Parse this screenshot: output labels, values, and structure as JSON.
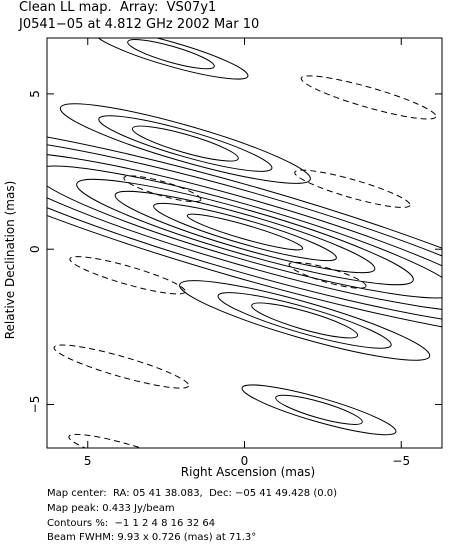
{
  "header": {
    "title_line1": "Clean LL map.  Array:  VS07y1",
    "title_line2": "J0541−05 at 4.812 GHz 2002 Mar 10"
  },
  "chart_data": {
    "type": "contour",
    "xlabel": "Right Ascension  (mas)",
    "ylabel": "Relative Declination  (mas)",
    "xlim": [
      6.3,
      -6.3
    ],
    "ylim": [
      -6.4,
      6.8
    ],
    "xticks": [
      {
        "value": 5,
        "label": "5"
      },
      {
        "value": 0,
        "label": "0"
      },
      {
        "value": -5,
        "label": "−5"
      }
    ],
    "yticks": [
      {
        "value": 5,
        "label": "5"
      },
      {
        "value": 0,
        "label": "0"
      },
      {
        "value": -5,
        "label": "−5"
      }
    ],
    "contour_levels_percent": [
      -1,
      1,
      2,
      4,
      8,
      16,
      32,
      64
    ],
    "map_peak_jy_per_beam": 0.433,
    "beam": {
      "major_mas": 9.93,
      "minor_mas": 0.726,
      "pa_deg": 71.3
    }
  },
  "info": {
    "line1": "Map center:  RA: 05 41 38.083,  Dec: −05 41 49.428 (0.0)",
    "line2": "Map peak: 0.433 Jy/beam",
    "line3": "Contours %:  −1 1 2 4 8 16 32 64",
    "line4": "Beam FWHM: 9.93 x 0.726 (mas) at 71.3°"
  }
}
